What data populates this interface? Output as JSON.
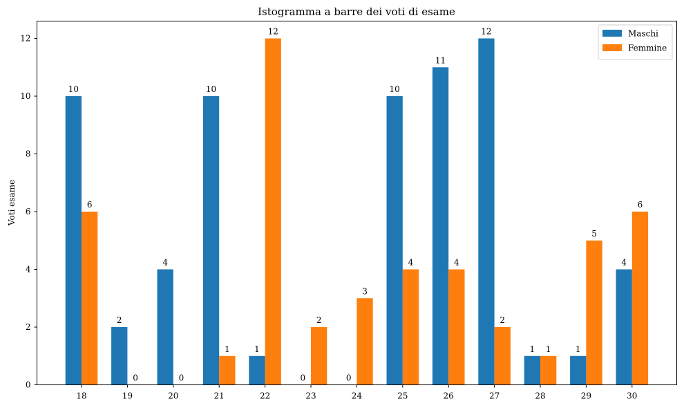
{
  "chart_data": {
    "type": "bar",
    "title": "Istogramma a barre dei voti di esame",
    "xlabel": "",
    "ylabel": "Voti esame",
    "categories": [
      "18",
      "19",
      "20",
      "21",
      "22",
      "23",
      "24",
      "25",
      "26",
      "27",
      "28",
      "29",
      "30"
    ],
    "series": [
      {
        "name": "Maschi",
        "color": "#1f77b4",
        "values": [
          10,
          2,
          4,
          10,
          1,
          0,
          0,
          10,
          11,
          12,
          1,
          1,
          4
        ]
      },
      {
        "name": "Femmine",
        "color": "#ff7f0e",
        "values": [
          6,
          0,
          0,
          1,
          12,
          2,
          3,
          4,
          4,
          2,
          1,
          5,
          6
        ]
      }
    ],
    "ylim": [
      0,
      12.6
    ],
    "yticks": [
      "0",
      "2",
      "4",
      "6",
      "8",
      "10",
      "12"
    ],
    "grid": false,
    "legend_position": "top-right"
  }
}
